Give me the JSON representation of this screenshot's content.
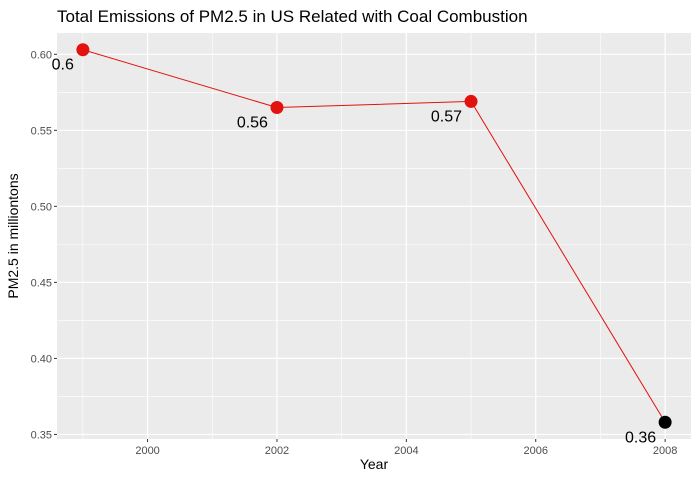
{
  "chart_data": {
    "type": "line",
    "title": "Total Emissions of PM2.5 in US Related with Coal Combustion",
    "xlabel": "Year",
    "ylabel": "PM2.5 in milliontons",
    "x": [
      1999,
      2002,
      2005,
      2008
    ],
    "values": [
      0.603,
      0.565,
      0.569,
      0.358
    ],
    "data_labels": [
      "0.6",
      "0.56",
      "0.57",
      "0.36"
    ],
    "xlim": [
      1998.6,
      2008.4
    ],
    "ylim": [
      0.347,
      0.614
    ],
    "x_ticks": [
      2000,
      2002,
      2004,
      2006,
      2008
    ],
    "x_tick_labels": [
      "2000",
      "2002",
      "2004",
      "2006",
      "2008"
    ],
    "y_ticks": [
      0.35,
      0.4,
      0.45,
      0.5,
      0.55,
      0.6
    ],
    "y_tick_labels": [
      "0.35",
      "0.40",
      "0.45",
      "0.50",
      "0.55",
      "0.60"
    ],
    "point_colors": [
      "#e2120e",
      "#e2120e",
      "#e2120e",
      "#000000"
    ],
    "line_color": "#e2120e",
    "panel_color": "#ebebeb",
    "grid_color": "#ffffff",
    "grid": true,
    "legend": "none"
  }
}
